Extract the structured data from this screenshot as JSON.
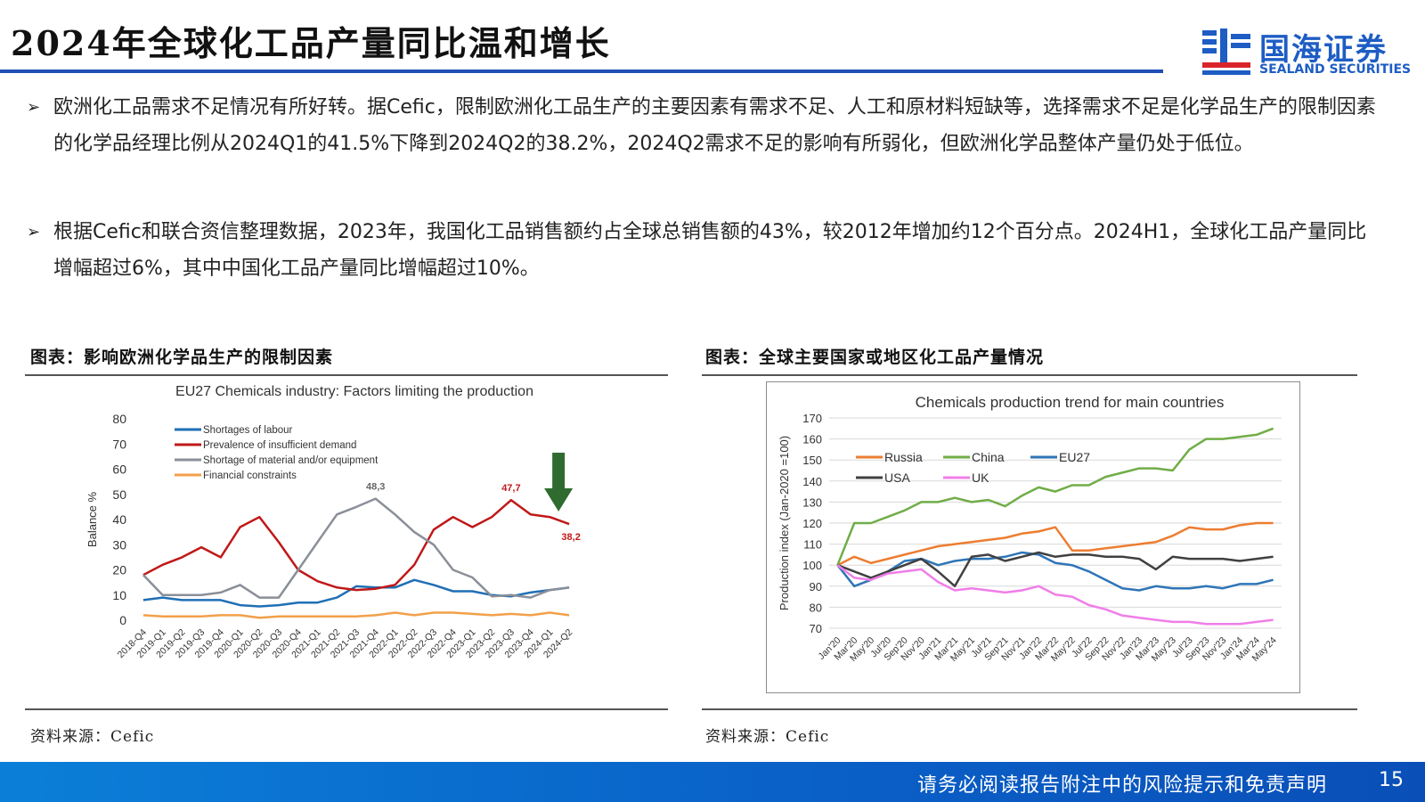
{
  "header": {
    "title": "2024年全球化工品产量同比温和增长",
    "logo_cn": "国海证券",
    "logo_en": "SEALAND SECURITIES"
  },
  "bullets": [
    {
      "arrow": "➢",
      "text": "欧洲化工品需求不足情况有所好转。据Cefic，限制欧洲化工品生产的主要因素有需求不足、人工和原材料短缺等，选择需求不足是化学品生产的限制因素的化学品经理比例从2024Q1的41.5%下降到2024Q2的38.2%，2024Q2需求不足的影响有所弱化，但欧洲化学品整体产量仍处于低位。"
    },
    {
      "arrow": "➢",
      "text": "根据Cefic和联合资信整理数据，2023年，我国化工品销售额约占全球总销售额的43%，较2012年增加约12个百分点。2024H1，全球化工品产量同比增幅超过6%，其中中国化工品产量同比增幅超过10%。"
    }
  ],
  "left_panel": {
    "caption": "图表：影响欧洲化学品生产的限制因素",
    "source": "资料来源：Cefic"
  },
  "right_panel": {
    "caption": "图表：全球主要国家或地区化工品产量情况",
    "source": "资料来源：Cefic"
  },
  "footer": {
    "disclaimer": "请务必阅读报告附注中的风险提示和免责声明",
    "page": "15"
  },
  "chart_data": [
    {
      "type": "line",
      "title": "EU27 Chemicals industry: Factors limiting the production",
      "ylabel": "Balance %",
      "ylim": [
        0,
        80
      ],
      "yticks": [
        "0",
        "10",
        "20",
        "30",
        "40",
        "50",
        "60",
        "70",
        "80"
      ],
      "categories": [
        "2018-Q4",
        "2019-Q1",
        "2019-Q2",
        "2019-Q3",
        "2019-Q4",
        "2020-Q1",
        "2020-Q2",
        "2020-Q3",
        "2020-Q4",
        "2021-Q1",
        "2021-Q2",
        "2021-Q3",
        "2021-Q4",
        "2022-Q1",
        "2022-Q2",
        "2022-Q3",
        "2022-Q4",
        "2023-Q1",
        "2023-Q2",
        "2023-Q3",
        "2023-Q4",
        "2024-Q1",
        "2024-Q2"
      ],
      "legend_position": "top-left",
      "series": [
        {
          "name": "Shortages of labour",
          "color": "#1f6fb5",
          "values": [
            8,
            9,
            8,
            8,
            8,
            6,
            5.5,
            6,
            7,
            7,
            9,
            13.5,
            13,
            13,
            16,
            14,
            11.5,
            11.5,
            10,
            9.5,
            11,
            12,
            13
          ]
        },
        {
          "name": "Prevalence of insufficient demand",
          "color": "#c01818",
          "values": [
            18,
            22,
            25,
            29,
            25,
            37,
            41,
            31,
            20,
            15.5,
            13,
            12,
            12.5,
            14,
            22,
            36,
            41,
            37,
            41,
            47.7,
            42,
            41,
            38.2
          ]
        },
        {
          "name": "Shortage of material and/or equipment",
          "color": "#8a8f98",
          "values": [
            18,
            10,
            10,
            10,
            11,
            14,
            9,
            9,
            20,
            31,
            42,
            45,
            48.3,
            42,
            35,
            30,
            20,
            17,
            9.5,
            10,
            9,
            12,
            13
          ]
        },
        {
          "name": "Financial constraints",
          "color": "#f2a04a",
          "values": [
            2,
            1.5,
            1.5,
            1.5,
            2,
            2,
            1,
            1.5,
            1.5,
            1.5,
            1.5,
            1.5,
            2,
            3,
            2,
            3,
            3,
            2.5,
            2,
            2.5,
            2,
            3,
            2
          ]
        }
      ],
      "annotations": [
        {
          "text": "48,3",
          "series": 2,
          "index": 12
        },
        {
          "text": "47,7",
          "series": 1,
          "index": 19
        },
        {
          "text": "38,2",
          "series": 1,
          "index": 22
        }
      ]
    },
    {
      "type": "line",
      "title": "Chemicals production trend for main countries",
      "ylabel": "Production index (Jan-2020 =100)",
      "ylim": [
        70,
        170
      ],
      "yticks": [
        "70",
        "80",
        "90",
        "100",
        "110",
        "120",
        "130",
        "140",
        "150",
        "160",
        "170"
      ],
      "categories": [
        "Jan'20",
        "Mar'20",
        "May'20",
        "Jul'20",
        "Sep'20",
        "Nov'20",
        "Jan'21",
        "Mar'21",
        "May'21",
        "Jul'21",
        "Sep'21",
        "Nov'21",
        "Jan'22",
        "Mar'22",
        "May'22",
        "Jul'22",
        "Sep'22",
        "Nov'22",
        "Jan'23",
        "Mar'23",
        "May'23",
        "Jul'23",
        "Sep'23",
        "Nov'23",
        "Jan'24",
        "Mar'24",
        "May'24"
      ],
      "legend_position": "top-left",
      "series": [
        {
          "name": "Russia",
          "color": "#ed7d31",
          "values": [
            100,
            104,
            101,
            103,
            105,
            107,
            109,
            110,
            111,
            112,
            113,
            115,
            116,
            118,
            107,
            107,
            108,
            109,
            110,
            111,
            114,
            118,
            117,
            117,
            119,
            120,
            120
          ]
        },
        {
          "name": "China",
          "color": "#70ad47",
          "values": [
            100,
            120,
            120,
            123,
            126,
            130,
            130,
            132,
            130,
            131,
            128,
            133,
            137,
            135,
            138,
            138,
            142,
            144,
            146,
            146,
            145,
            155,
            160,
            160,
            161,
            162,
            165
          ]
        },
        {
          "name": "EU27",
          "color": "#2e75b6",
          "values": [
            100,
            90,
            93,
            97,
            102,
            103,
            100,
            102,
            103,
            103,
            104,
            106,
            105,
            101,
            100,
            97,
            93,
            89,
            88,
            90,
            89,
            89,
            90,
            89,
            91,
            91,
            93
          ]
        },
        {
          "name": "USA",
          "color": "#404040",
          "values": [
            100,
            97,
            94,
            97,
            100,
            103,
            97,
            90,
            104,
            105,
            102,
            104,
            106,
            104,
            105,
            105,
            104,
            104,
            103,
            98,
            104,
            103,
            103,
            103,
            102,
            103,
            104
          ]
        },
        {
          "name": "UK",
          "color": "#f07ee8",
          "values": [
            100,
            94,
            93,
            96,
            97,
            98,
            92,
            88,
            89,
            88,
            87,
            88,
            90,
            86,
            85,
            81,
            79,
            76,
            75,
            74,
            73,
            73,
            72,
            72,
            72,
            73,
            74
          ]
        }
      ]
    }
  ]
}
